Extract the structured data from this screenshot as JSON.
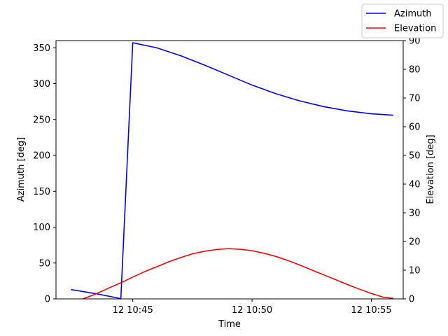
{
  "chart_data": {
    "type": "line",
    "xlabel": "Time",
    "ylabel_left": "Azimuth [deg]",
    "ylabel_right": "Elevation [deg]",
    "xlim": [
      "12 10:41:47",
      "12 10:56:20"
    ],
    "ylim_left": [
      0,
      360
    ],
    "ylim_right": [
      0,
      90
    ],
    "x_ticks": [
      "12 10:45",
      "12 10:50",
      "12 10:55"
    ],
    "y_ticks_left": [
      0,
      50,
      100,
      150,
      200,
      250,
      300,
      350
    ],
    "y_ticks_right": [
      0,
      10,
      20,
      30,
      40,
      50,
      60,
      70,
      80,
      90
    ],
    "grid": false,
    "legend_position": "top-right, outside plot",
    "series": [
      {
        "name": "Azimuth",
        "axis": "left",
        "color": "#0000ff",
        "x": [
          "12 10:42:25",
          "12 10:43:30",
          "12 10:44:25",
          "12 10:44:30",
          "12 10:45:00",
          "12 10:46:00",
          "12 10:47:00",
          "12 10:48:00",
          "12 10:49:00",
          "12 10:50:00",
          "12 10:51:00",
          "12 10:52:00",
          "12 10:53:00",
          "12 10:54:00",
          "12 10:55:00",
          "12 10:55:55"
        ],
        "y": [
          13,
          7,
          1,
          0,
          357,
          350,
          339,
          326,
          312,
          298,
          286,
          276,
          268,
          262,
          258,
          256
        ]
      },
      {
        "name": "Elevation",
        "axis": "right",
        "color": "#ff0000",
        "x": [
          "12 10:42:55",
          "12 10:43:30",
          "12 10:44:00",
          "12 10:44:30",
          "12 10:45:00",
          "12 10:45:30",
          "12 10:46:00",
          "12 10:46:30",
          "12 10:47:00",
          "12 10:47:30",
          "12 10:48:00",
          "12 10:48:30",
          "12 10:49:00",
          "12 10:49:30",
          "12 10:50:00",
          "12 10:50:30",
          "12 10:51:00",
          "12 10:51:30",
          "12 10:52:00",
          "12 10:52:30",
          "12 10:53:00",
          "12 10:53:30",
          "12 10:54:00",
          "12 10:54:30",
          "12 10:55:00",
          "12 10:55:30",
          "12 10:55:55"
        ],
        "y": [
          0.0,
          1.9,
          3.8,
          5.6,
          7.6,
          9.5,
          11.2,
          12.9,
          14.4,
          15.7,
          16.6,
          17.2,
          17.5,
          17.3,
          16.8,
          15.9,
          14.8,
          13.4,
          11.8,
          10.1,
          8.4,
          6.7,
          5.0,
          3.4,
          1.9,
          0.6,
          0.2
        ]
      }
    ]
  }
}
